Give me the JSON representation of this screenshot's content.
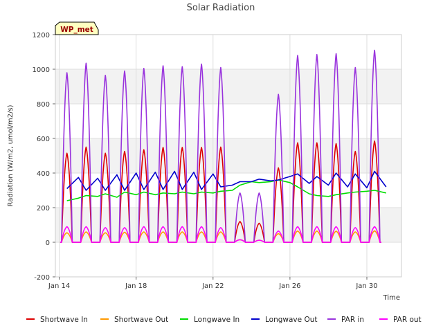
{
  "chart_data": {
    "type": "line",
    "title": "Solar Radiation",
    "xlabel": "Time",
    "ylabel": "Radiation (W/m2, umol/m2/s)",
    "ylim": [
      -200,
      1200
    ],
    "xlim_days": [
      13.8,
      31.8
    ],
    "yticks": [
      -200,
      0,
      200,
      400,
      600,
      800,
      1000,
      1200
    ],
    "xticks": [
      {
        "day": 14,
        "label": "Jan 14"
      },
      {
        "day": 18,
        "label": "Jan 18"
      },
      {
        "day": 22,
        "label": "Jan 22"
      },
      {
        "day": 26,
        "label": "Jan 26"
      },
      {
        "day": 30,
        "label": "Jan 30"
      }
    ],
    "grid": true,
    "legend_position": "bottom",
    "station_badge": "WP_met",
    "series": [
      {
        "name": "Shortwave In",
        "color": "#dd0000",
        "x": [
          14.4,
          15.4,
          16.4,
          17.4,
          18.4,
          19.4,
          20.4,
          21.4,
          22.4,
          23.4,
          24.4,
          25.4,
          26.4,
          27.4,
          28.4,
          29.4,
          30.4
        ],
        "y": [
          515,
          550,
          515,
          525,
          535,
          548,
          548,
          548,
          550,
          120,
          110,
          430,
          575,
          575,
          570,
          525,
          585
        ]
      },
      {
        "name": "Shortwave Out",
        "color": "#ff9900",
        "x": [
          14.4,
          15.4,
          16.4,
          17.4,
          18.4,
          19.4,
          20.4,
          21.4,
          22.4,
          23.4,
          24.4,
          25.4,
          26.4,
          27.4,
          28.4,
          29.4,
          30.4
        ],
        "y": [
          55,
          60,
          55,
          58,
          60,
          60,
          60,
          60,
          60,
          15,
          12,
          50,
          65,
          65,
          64,
          60,
          66
        ]
      },
      {
        "name": "Longwave In",
        "color": "#00dd00",
        "x": [
          14.4,
          15.0,
          15.4,
          16.0,
          16.4,
          17.0,
          17.4,
          18.0,
          18.4,
          19.0,
          19.4,
          20.0,
          20.4,
          21.0,
          21.4,
          22.0,
          22.4,
          23.0,
          23.4,
          24.0,
          24.4,
          25.0,
          25.4,
          26.0,
          26.4,
          27.0,
          27.4,
          28.0,
          28.4,
          29.0,
          29.4,
          30.0,
          30.4,
          31.0
        ],
        "y": [
          240,
          255,
          270,
          265,
          280,
          260,
          290,
          275,
          290,
          275,
          285,
          280,
          290,
          280,
          290,
          285,
          295,
          300,
          330,
          350,
          345,
          350,
          360,
          345,
          320,
          280,
          270,
          265,
          275,
          285,
          290,
          295,
          300,
          285
        ]
      },
      {
        "name": "Longwave Out",
        "color": "#0000cc",
        "x": [
          14.4,
          15.0,
          15.4,
          16.0,
          16.4,
          17.0,
          17.4,
          18.0,
          18.4,
          19.0,
          19.4,
          20.0,
          20.4,
          21.0,
          21.4,
          22.0,
          22.4,
          23.0,
          23.4,
          24.0,
          24.4,
          25.0,
          25.4,
          26.0,
          26.4,
          27.0,
          27.4,
          28.0,
          28.4,
          29.0,
          29.4,
          30.0,
          30.4,
          31.0
        ],
        "y": [
          310,
          375,
          300,
          370,
          300,
          390,
          300,
          400,
          305,
          405,
          305,
          410,
          305,
          405,
          305,
          395,
          320,
          330,
          350,
          350,
          365,
          355,
          360,
          380,
          395,
          340,
          380,
          330,
          400,
          320,
          395,
          315,
          410,
          320
        ]
      },
      {
        "name": "PAR in",
        "color": "#9933dd",
        "x": [
          14.4,
          15.4,
          16.4,
          17.4,
          18.4,
          19.4,
          20.4,
          21.4,
          22.4,
          23.4,
          24.4,
          25.4,
          26.4,
          27.4,
          28.4,
          29.4,
          30.4
        ],
        "y": [
          980,
          1035,
          965,
          990,
          1005,
          1020,
          1015,
          1030,
          1010,
          285,
          285,
          855,
          1080,
          1085,
          1090,
          1010,
          1110
        ]
      },
      {
        "name": "PAR out",
        "color": "#ff00ff",
        "x": [
          14.4,
          15.4,
          16.4,
          17.4,
          18.4,
          19.4,
          20.4,
          21.4,
          22.4,
          23.4,
          24.4,
          25.4,
          26.4,
          27.4,
          28.4,
          29.4,
          30.4
        ],
        "y": [
          90,
          90,
          85,
          85,
          90,
          90,
          90,
          90,
          85,
          15,
          12,
          65,
          90,
          90,
          90,
          85,
          90
        ]
      }
    ]
  }
}
